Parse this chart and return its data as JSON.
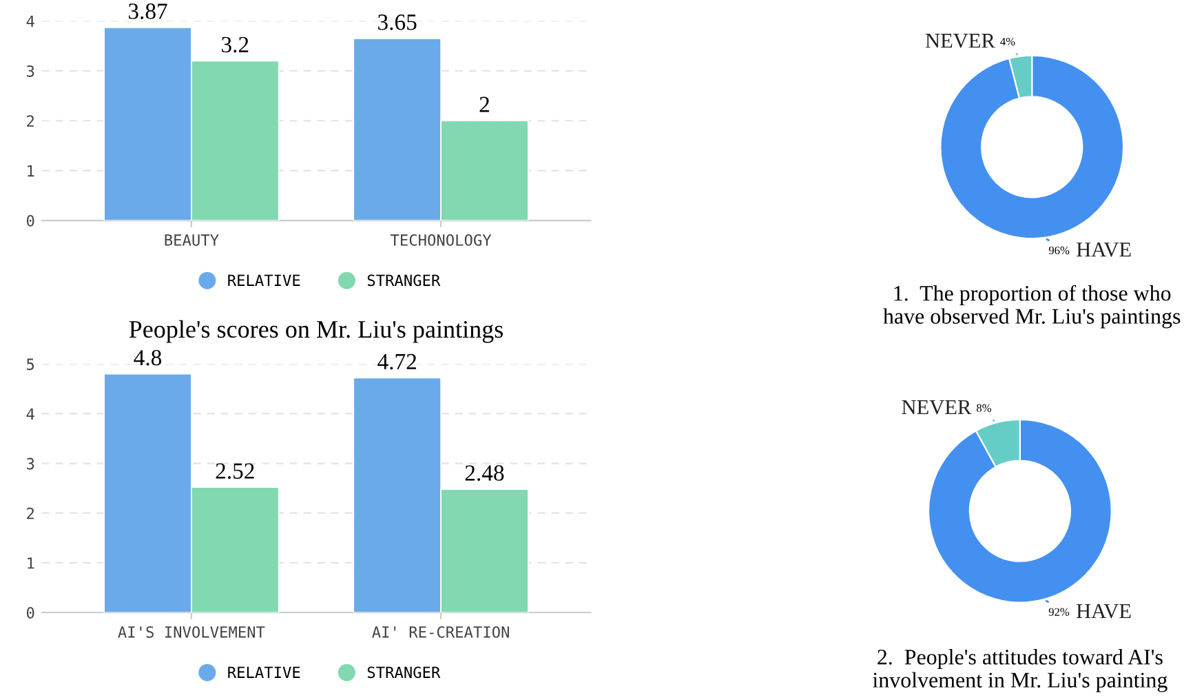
{
  "chart_data": [
    {
      "type": "bar",
      "categories": [
        "BEAUTY",
        "TECHONOLOGY"
      ],
      "series": [
        {
          "name": "RELATIVE",
          "color": "#6aaaeb",
          "values": [
            3.87,
            3.65
          ]
        },
        {
          "name": "STRANGER",
          "color": "#82d8b0",
          "values": [
            3.2,
            2
          ]
        }
      ],
      "ylim": [
        0,
        4
      ],
      "yticks": [
        0,
        1,
        2,
        3,
        4
      ],
      "grid": "y",
      "legend": "bottom",
      "data_labels": true,
      "annotations": [
        "People's scores on Mr. Liu's paintings"
      ]
    },
    {
      "type": "donut",
      "categories": [
        "HAVE",
        "NEVER"
      ],
      "values": [
        96,
        4
      ],
      "value_labels": [
        "96%",
        "4%"
      ],
      "colors": [
        "#4390f0",
        "#66cdc6"
      ],
      "annotations": [
        "1.  The proportion of those who have observed Mr. Liu's paintings"
      ]
    },
    {
      "type": "bar",
      "categories": [
        "AI'S INVOLVEMENT",
        "AI' RE-CREATION"
      ],
      "series": [
        {
          "name": "RELATIVE",
          "color": "#6aaaeb",
          "values": [
            4.8,
            4.72
          ]
        },
        {
          "name": "STRANGER",
          "color": "#82d8b0",
          "values": [
            2.52,
            2.48
          ]
        }
      ],
      "ylim": [
        0,
        5
      ],
      "yticks": [
        0,
        1,
        2,
        3,
        4,
        5
      ],
      "grid": "y",
      "legend": "bottom",
      "data_labels": true
    },
    {
      "type": "donut",
      "categories": [
        "HAVE",
        "NEVER"
      ],
      "values": [
        92,
        8
      ],
      "value_labels": [
        "92%",
        "8%"
      ],
      "colors": [
        "#4390f0",
        "#66cdc6"
      ],
      "annotations": [
        "2.  People's attitudes toward AI's involvement in Mr. Liu's painting"
      ]
    }
  ]
}
